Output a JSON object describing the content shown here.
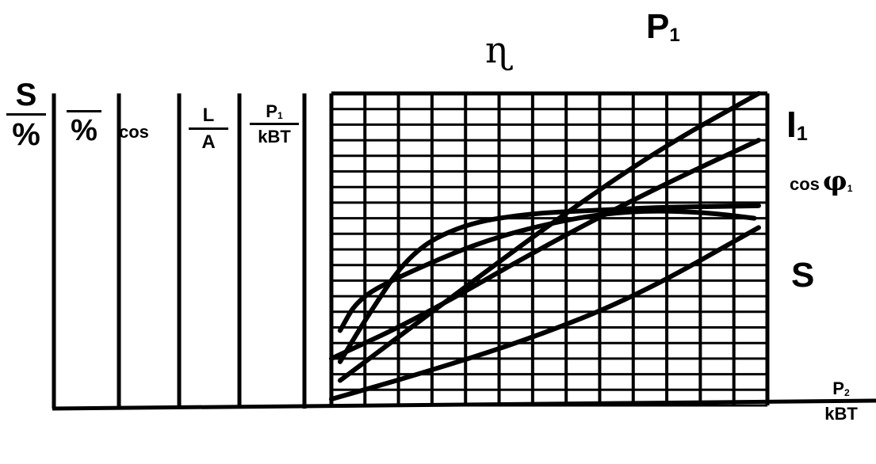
{
  "chart_data": {
    "type": "line",
    "title": "",
    "x_axis_label": {
      "num": "P",
      "num_sub": "2",
      "den": "kBT"
    },
    "scale_columns": [
      {
        "num": "S",
        "den": "%"
      },
      {
        "num": "",
        "den": "%"
      },
      {
        "label": "cos"
      },
      {
        "num": "L",
        "den": "A"
      },
      {
        "num": "P",
        "num_sub": "1",
        "den": "kBT"
      }
    ],
    "curve_labels": {
      "eta": {
        "label": "ɳ"
      },
      "P1": {
        "label": "P",
        "sub": "1"
      },
      "I1": {
        "label": "I",
        "sub": "1"
      },
      "cos_phi1": {
        "label": "cos",
        "symbol": "φ",
        "sub": "1"
      },
      "S": {
        "label": "S"
      }
    },
    "grid": true,
    "x_grid_divisions": 13,
    "y_grid_divisions": 20,
    "xlim": [
      0,
      1
    ],
    "ylim": [
      0,
      1
    ],
    "series": [
      {
        "name": "P1",
        "points": [
          [
            0.02,
            0.08
          ],
          [
            0.25,
            0.32
          ],
          [
            0.5,
            0.58
          ],
          [
            0.75,
            0.82
          ],
          [
            0.98,
            1.0
          ]
        ]
      },
      {
        "name": "I1",
        "points": [
          [
            0.0,
            0.15
          ],
          [
            0.2,
            0.28
          ],
          [
            0.5,
            0.52
          ],
          [
            0.75,
            0.7
          ],
          [
            0.98,
            0.85
          ]
        ]
      },
      {
        "name": "cos φ1",
        "points": [
          [
            0.02,
            0.14
          ],
          [
            0.08,
            0.28
          ],
          [
            0.18,
            0.49
          ],
          [
            0.3,
            0.58
          ],
          [
            0.45,
            0.615
          ],
          [
            0.6,
            0.625
          ],
          [
            0.75,
            0.635
          ],
          [
            0.9,
            0.638
          ],
          [
            0.98,
            0.64
          ]
        ]
      },
      {
        "name": "η",
        "points": [
          [
            0.02,
            0.24
          ],
          [
            0.06,
            0.34
          ],
          [
            0.15,
            0.41
          ],
          [
            0.35,
            0.53
          ],
          [
            0.55,
            0.6
          ],
          [
            0.7,
            0.625
          ],
          [
            0.85,
            0.62
          ],
          [
            0.97,
            0.6
          ]
        ]
      },
      {
        "name": "S",
        "points": [
          [
            0.0,
            0.02
          ],
          [
            0.2,
            0.1
          ],
          [
            0.45,
            0.21
          ],
          [
            0.7,
            0.35
          ],
          [
            0.98,
            0.57
          ]
        ]
      }
    ]
  }
}
